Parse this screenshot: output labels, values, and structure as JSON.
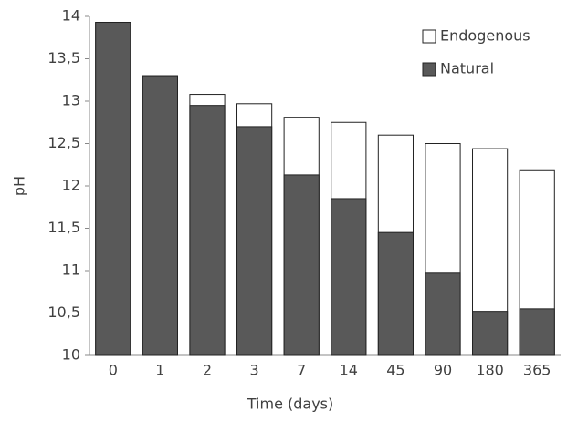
{
  "chart_data": {
    "type": "bar",
    "barmode": "overlay",
    "xlabel": "Time (days)",
    "ylabel": "pH",
    "categories": [
      "0",
      "1",
      "2",
      "3",
      "7",
      "14",
      "45",
      "90",
      "180",
      "365"
    ],
    "series": [
      {
        "name": "Endogenous",
        "color": "#ffffff",
        "values": [
          13.93,
          13.3,
          13.08,
          12.97,
          12.81,
          12.75,
          12.6,
          12.5,
          12.44,
          12.18
        ]
      },
      {
        "name": "Natural",
        "color": "#595959",
        "values": [
          13.93,
          13.3,
          12.95,
          12.7,
          12.13,
          11.85,
          11.45,
          10.97,
          10.52,
          10.55
        ]
      }
    ],
    "ylim": [
      10,
      14
    ],
    "yticks": [
      10,
      {
        "value": 10.5,
        "label": "10,5"
      },
      11,
      {
        "value": 11.5,
        "label": "11,5"
      },
      12,
      {
        "value": 12.5,
        "label": "12,5"
      },
      13,
      {
        "value": 13.5,
        "label": "13,5"
      },
      14
    ],
    "grid": false,
    "legend": "top-right"
  }
}
